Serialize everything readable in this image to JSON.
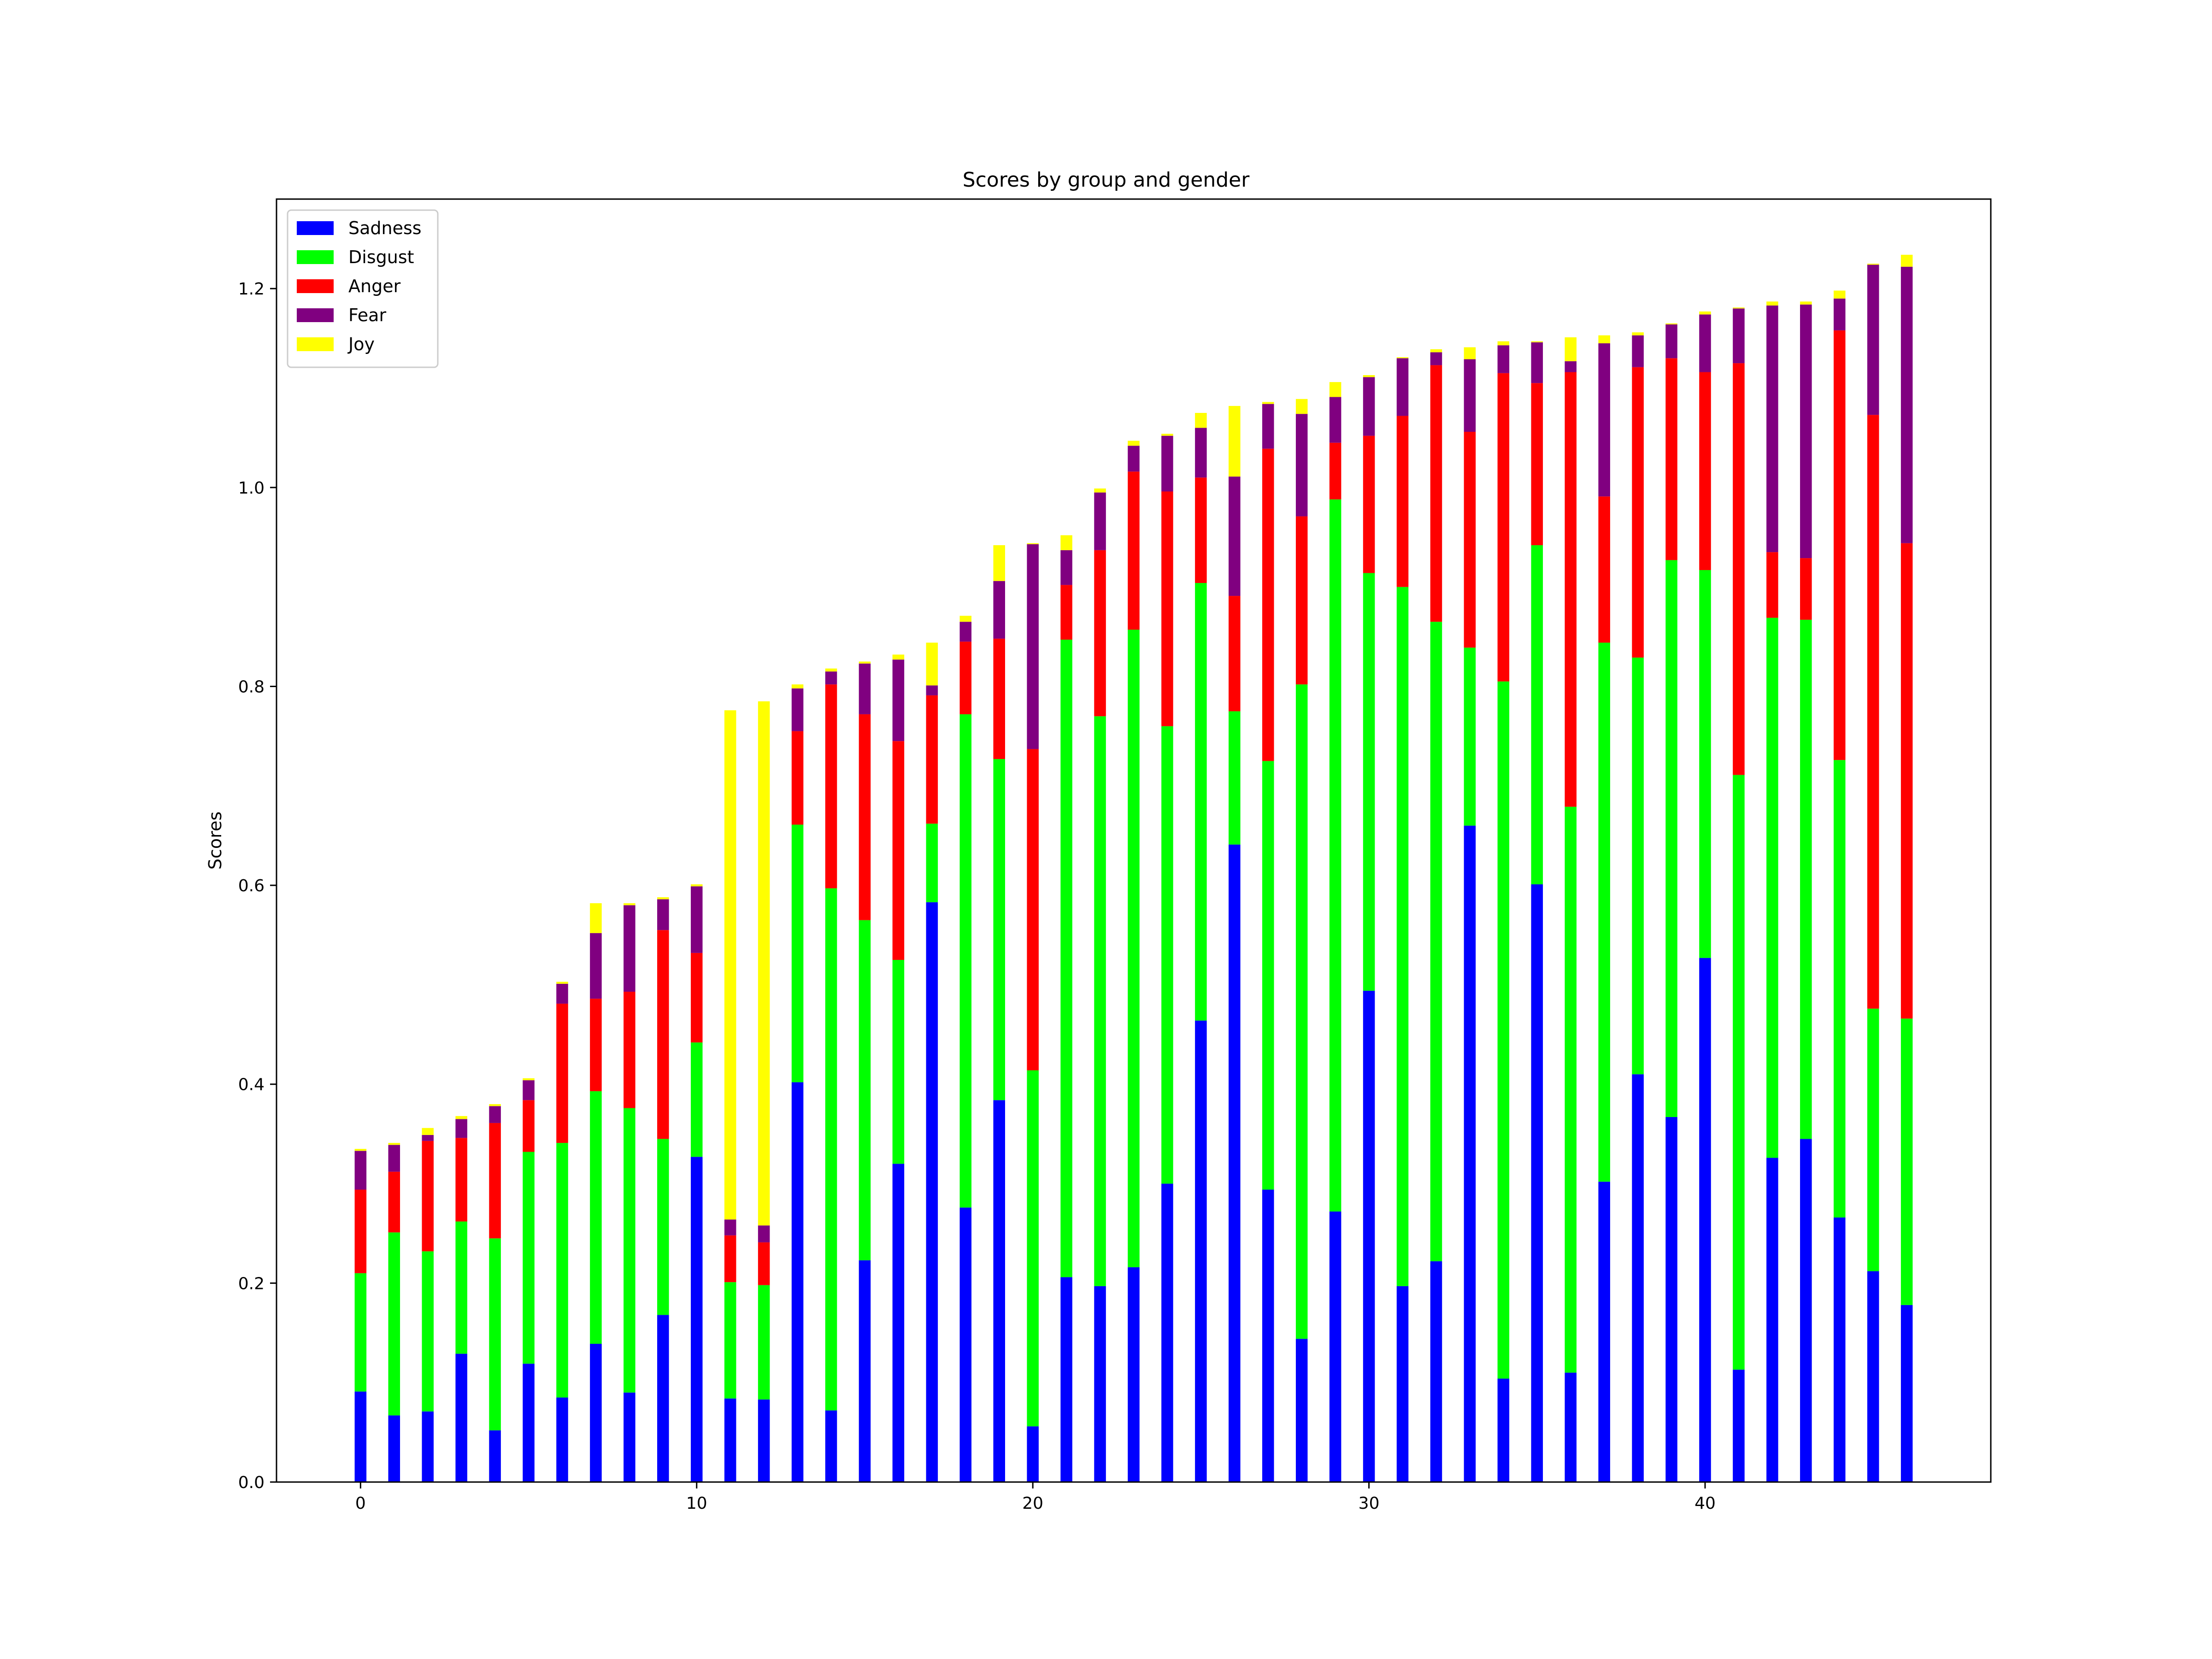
{
  "chart_data": {
    "type": "bar",
    "stacked": true,
    "title": "Scores by group and gender",
    "xlabel": "",
    "ylabel": "Scores",
    "xlim": [
      -2.5,
      48.5
    ],
    "ylim": [
      0,
      1.29
    ],
    "x_ticks": [
      0,
      10,
      20,
      30,
      40
    ],
    "y_ticks": [
      0.0,
      0.2,
      0.4,
      0.6,
      0.8,
      1.0,
      1.2
    ],
    "x_tick_labels": [
      "0",
      "10",
      "20",
      "30",
      "40"
    ],
    "y_tick_labels": [
      "0.0",
      "0.2",
      "0.4",
      "0.6",
      "0.8",
      "1.0",
      "1.2"
    ],
    "grid": false,
    "legend_position": "top-left",
    "x": [
      0,
      1,
      2,
      3,
      4,
      5,
      6,
      7,
      8,
      9,
      10,
      11,
      12,
      13,
      14,
      15,
      16,
      17,
      18,
      19,
      20,
      21,
      22,
      23,
      24,
      25,
      26,
      27,
      28,
      29,
      30,
      31,
      32,
      33,
      34,
      35,
      36,
      37,
      38,
      39,
      40,
      41,
      42,
      43,
      44,
      45,
      46
    ],
    "series": [
      {
        "name": "Sadness",
        "color": "#0000ff",
        "values": [
          0.091,
          0.067,
          0.071,
          0.129,
          0.052,
          0.119,
          0.085,
          0.139,
          0.09,
          0.168,
          0.327,
          0.084,
          0.083,
          0.402,
          0.072,
          0.223,
          0.32,
          0.583,
          0.276,
          0.384,
          0.056,
          0.206,
          0.197,
          0.216,
          0.3,
          0.464,
          0.641,
          0.294,
          0.144,
          0.272,
          0.494,
          0.197,
          0.222,
          0.66,
          0.104,
          0.601,
          0.11,
          0.302,
          0.41,
          0.367,
          0.527,
          0.113,
          0.326,
          0.345,
          0.266,
          0.212,
          0.178
        ]
      },
      {
        "name": "Disgust",
        "color": "#00ff00",
        "values": [
          0.119,
          0.184,
          0.161,
          0.133,
          0.193,
          0.213,
          0.256,
          0.254,
          0.286,
          0.177,
          0.115,
          0.117,
          0.115,
          0.259,
          0.525,
          0.342,
          0.205,
          0.079,
          0.496,
          0.343,
          0.358,
          0.641,
          0.573,
          0.641,
          0.46,
          0.44,
          0.134,
          0.431,
          0.658,
          0.716,
          0.42,
          0.703,
          0.643,
          0.179,
          0.701,
          0.341,
          0.569,
          0.542,
          0.419,
          0.56,
          0.39,
          0.598,
          0.543,
          0.522,
          0.46,
          0.264,
          0.288
        ]
      },
      {
        "name": "Anger",
        "color": "#ff0000",
        "values": [
          0.084,
          0.061,
          0.111,
          0.084,
          0.116,
          0.052,
          0.14,
          0.093,
          0.117,
          0.21,
          0.09,
          0.047,
          0.043,
          0.094,
          0.205,
          0.207,
          0.22,
          0.129,
          0.073,
          0.121,
          0.323,
          0.055,
          0.167,
          0.159,
          0.236,
          0.106,
          0.116,
          0.314,
          0.169,
          0.057,
          0.138,
          0.172,
          0.258,
          0.217,
          0.31,
          0.163,
          0.437,
          0.147,
          0.292,
          0.203,
          0.199,
          0.414,
          0.066,
          0.062,
          0.432,
          0.597,
          0.478
        ]
      },
      {
        "name": "Fear",
        "color": "#800080",
        "values": [
          0.039,
          0.027,
          0.006,
          0.019,
          0.017,
          0.02,
          0.02,
          0.066,
          0.087,
          0.031,
          0.067,
          0.016,
          0.017,
          0.043,
          0.013,
          0.051,
          0.082,
          0.01,
          0.02,
          0.058,
          0.206,
          0.035,
          0.058,
          0.026,
          0.056,
          0.05,
          0.12,
          0.045,
          0.103,
          0.046,
          0.059,
          0.058,
          0.013,
          0.073,
          0.028,
          0.041,
          0.011,
          0.154,
          0.032,
          0.034,
          0.058,
          0.055,
          0.248,
          0.255,
          0.032,
          0.151,
          0.278
        ]
      },
      {
        "name": "Joy",
        "color": "#ffff00",
        "values": [
          0.002,
          0.002,
          0.007,
          0.003,
          0.002,
          0.002,
          0.002,
          0.03,
          0.002,
          0.002,
          0.002,
          0.512,
          0.527,
          0.004,
          0.003,
          0.002,
          0.005,
          0.043,
          0.006,
          0.036,
          0.001,
          0.015,
          0.004,
          0.005,
          0.002,
          0.015,
          0.071,
          0.002,
          0.015,
          0.015,
          0.002,
          0.001,
          0.003,
          0.012,
          0.004,
          0.001,
          0.024,
          0.008,
          0.003,
          0.001,
          0.003,
          0.001,
          0.004,
          0.003,
          0.008,
          0.001,
          0.012
        ]
      }
    ]
  }
}
